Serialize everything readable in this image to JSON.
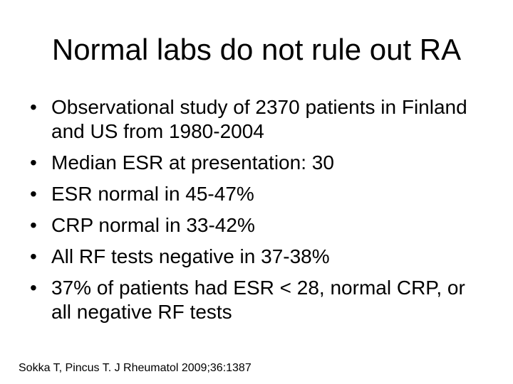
{
  "slide": {
    "title": "Normal labs do not rule out RA",
    "bullet_marker": "•",
    "bullets": [
      "Observational study of 2370 patients in Finland and US from 1980-2004",
      "Median ESR at presentation: 30",
      "ESR normal in 45-47%",
      "CRP normal in 33-42%",
      "All RF tests negative in 37-38%",
      "37% of patients had ESR < 28, normal CRP, or all negative RF tests"
    ],
    "citation": "Sokka T, Pincus T.  J Rheumatol 2009;36:1387"
  }
}
